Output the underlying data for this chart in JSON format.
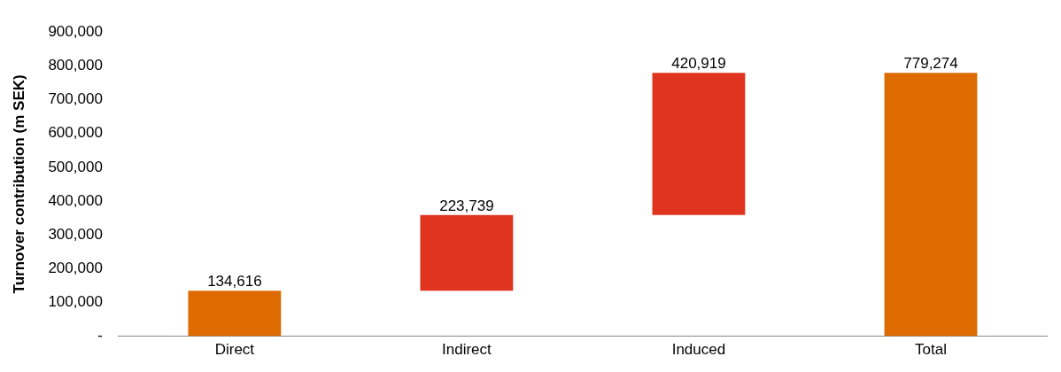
{
  "chart_data": {
    "type": "bar",
    "ylabel": "Turnover contribution (m SEK)",
    "categories": [
      "Direct",
      "Indirect",
      "Induced",
      "Total"
    ],
    "values": [
      134616,
      223739,
      420919,
      779274
    ],
    "base": [
      0,
      134616,
      358355,
      0
    ],
    "colors": [
      "#dd6b00",
      "#e03421",
      "#e03421",
      "#dd6b00"
    ],
    "ylim": [
      0,
      900000
    ],
    "yticks": [
      {
        "value": 0,
        "label": "-"
      },
      {
        "value": 100000,
        "label": "100,000"
      },
      {
        "value": 200000,
        "label": "200,000"
      },
      {
        "value": 300000,
        "label": "300,000"
      },
      {
        "value": 400000,
        "label": "400,000"
      },
      {
        "value": 500000,
        "label": "500,000"
      },
      {
        "value": 600000,
        "label": "600,000"
      },
      {
        "value": 700000,
        "label": "700,000"
      },
      {
        "value": 800000,
        "label": "800,000"
      },
      {
        "value": 900000,
        "label": "900,000"
      }
    ],
    "value_labels": [
      "134,616",
      "223,739",
      "420,919",
      "779,274"
    ],
    "grid": false,
    "legend": false
  }
}
